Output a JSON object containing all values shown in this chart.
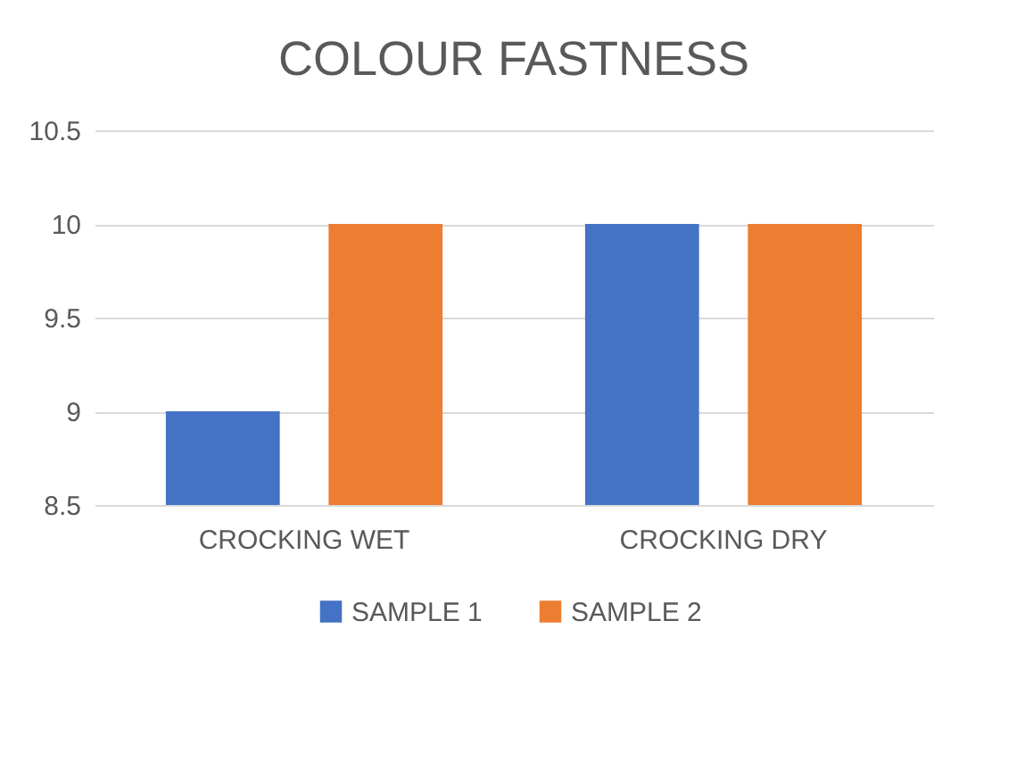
{
  "chart_data": {
    "type": "bar",
    "title": "COLOUR FASTNESS",
    "categories": [
      "CROCKING WET",
      "CROCKING DRY"
    ],
    "series": [
      {
        "name": "SAMPLE 1",
        "color": "#4472c4",
        "values": [
          9,
          10
        ]
      },
      {
        "name": "SAMPLE 2",
        "color": "#ed7d31",
        "values": [
          10,
          10
        ]
      }
    ],
    "ylim": [
      8.5,
      10.5
    ],
    "yticks": [
      8.5,
      9,
      9.5,
      10,
      10.5
    ],
    "grid": "y",
    "legend": "bottom"
  }
}
